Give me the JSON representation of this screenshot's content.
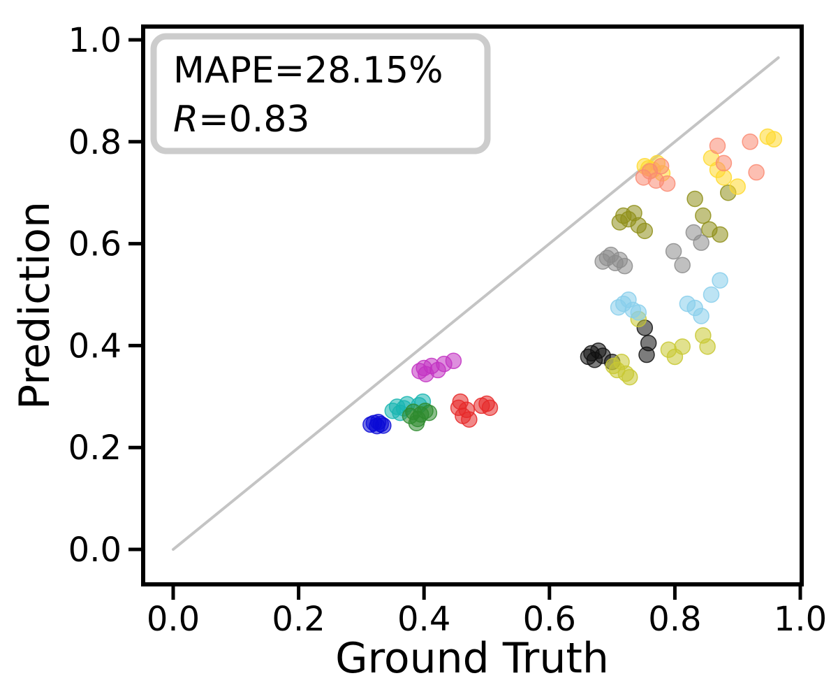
{
  "chart_data": {
    "type": "scatter",
    "title": "",
    "xlabel": "Ground Truth",
    "ylabel": "Prediction",
    "xlim": [
      -0.05,
      1.0
    ],
    "ylim": [
      -0.07,
      1.03
    ],
    "xticks": [
      "0.0",
      "0.2",
      "0.4",
      "0.6",
      "0.8",
      "1.0"
    ],
    "yticks": [
      "0.0",
      "0.2",
      "0.4",
      "0.6",
      "0.8",
      "1.0"
    ],
    "grid": false,
    "legend": "none",
    "annotation": {
      "mape": "MAPE=28.15%",
      "r_symbol": "R",
      "r_rest": "=0.83"
    },
    "identity_line": {
      "color": "#c4c4c4",
      "from": [
        0.0,
        0.0
      ],
      "to": [
        0.965,
        0.965
      ]
    },
    "marker": {
      "radius": 11,
      "alpha": 0.55
    },
    "series": [
      {
        "name": "blue",
        "color": "#0a0ad6",
        "points": [
          [
            0.315,
            0.245
          ],
          [
            0.32,
            0.248
          ],
          [
            0.325,
            0.242
          ],
          [
            0.331,
            0.246
          ],
          [
            0.335,
            0.243
          ],
          [
            0.327,
            0.25
          ]
        ]
      },
      {
        "name": "teal",
        "color": "#18b5b0",
        "points": [
          [
            0.35,
            0.272
          ],
          [
            0.357,
            0.28
          ],
          [
            0.362,
            0.268
          ],
          [
            0.368,
            0.277
          ],
          [
            0.373,
            0.285
          ],
          [
            0.398,
            0.29
          ],
          [
            0.392,
            0.283
          ]
        ]
      },
      {
        "name": "green",
        "color": "#2e8b2e",
        "points": [
          [
            0.378,
            0.262
          ],
          [
            0.383,
            0.27
          ],
          [
            0.39,
            0.256
          ],
          [
            0.395,
            0.265
          ],
          [
            0.402,
            0.272
          ],
          [
            0.408,
            0.268
          ],
          [
            0.388,
            0.248
          ]
        ]
      },
      {
        "name": "red",
        "color": "#e62828",
        "points": [
          [
            0.455,
            0.278
          ],
          [
            0.458,
            0.29
          ],
          [
            0.462,
            0.262
          ],
          [
            0.468,
            0.274
          ],
          [
            0.472,
            0.255
          ],
          [
            0.492,
            0.282
          ],
          [
            0.5,
            0.286
          ],
          [
            0.505,
            0.278
          ]
        ]
      },
      {
        "name": "magenta",
        "color": "#c233c2",
        "points": [
          [
            0.393,
            0.35
          ],
          [
            0.4,
            0.356
          ],
          [
            0.403,
            0.344
          ],
          [
            0.412,
            0.36
          ],
          [
            0.422,
            0.352
          ],
          [
            0.432,
            0.364
          ],
          [
            0.447,
            0.37
          ]
        ]
      },
      {
        "name": "black",
        "color": "#111111",
        "points": [
          [
            0.662,
            0.378
          ],
          [
            0.667,
            0.385
          ],
          [
            0.672,
            0.372
          ],
          [
            0.678,
            0.39
          ],
          [
            0.685,
            0.38
          ],
          [
            0.7,
            0.368
          ],
          [
            0.752,
            0.435
          ],
          [
            0.758,
            0.405
          ],
          [
            0.755,
            0.382
          ]
        ]
      },
      {
        "name": "khaki",
        "color": "#c8c832",
        "points": [
          [
            0.702,
            0.36
          ],
          [
            0.708,
            0.352
          ],
          [
            0.715,
            0.368
          ],
          [
            0.722,
            0.345
          ],
          [
            0.728,
            0.338
          ],
          [
            0.742,
            0.452
          ],
          [
            0.79,
            0.392
          ],
          [
            0.8,
            0.378
          ],
          [
            0.812,
            0.398
          ],
          [
            0.845,
            0.42
          ],
          [
            0.852,
            0.398
          ]
        ]
      },
      {
        "name": "olive",
        "color": "#8f8f1a",
        "points": [
          [
            0.712,
            0.642
          ],
          [
            0.718,
            0.655
          ],
          [
            0.726,
            0.648
          ],
          [
            0.735,
            0.66
          ],
          [
            0.742,
            0.636
          ],
          [
            0.752,
            0.625
          ],
          [
            0.832,
            0.688
          ],
          [
            0.845,
            0.655
          ],
          [
            0.855,
            0.628
          ],
          [
            0.872,
            0.618
          ],
          [
            0.885,
            0.7
          ]
        ]
      },
      {
        "name": "gray",
        "color": "#8c8c8c",
        "points": [
          [
            0.685,
            0.565
          ],
          [
            0.692,
            0.572
          ],
          [
            0.698,
            0.578
          ],
          [
            0.705,
            0.562
          ],
          [
            0.712,
            0.568
          ],
          [
            0.72,
            0.556
          ],
          [
            0.798,
            0.585
          ],
          [
            0.812,
            0.558
          ],
          [
            0.83,
            0.622
          ],
          [
            0.842,
            0.602
          ]
        ]
      },
      {
        "name": "skyblue",
        "color": "#87ceeb",
        "points": [
          [
            0.71,
            0.475
          ],
          [
            0.718,
            0.482
          ],
          [
            0.726,
            0.49
          ],
          [
            0.733,
            0.47
          ],
          [
            0.742,
            0.465
          ],
          [
            0.82,
            0.482
          ],
          [
            0.832,
            0.474
          ],
          [
            0.858,
            0.5
          ],
          [
            0.872,
            0.528
          ],
          [
            0.842,
            0.458
          ]
        ]
      },
      {
        "name": "yellow",
        "color": "#ffd92e",
        "points": [
          [
            0.752,
            0.752
          ],
          [
            0.758,
            0.748
          ],
          [
            0.765,
            0.745
          ],
          [
            0.772,
            0.758
          ],
          [
            0.78,
            0.738
          ],
          [
            0.858,
            0.768
          ],
          [
            0.868,
            0.745
          ],
          [
            0.878,
            0.73
          ],
          [
            0.9,
            0.712
          ],
          [
            0.948,
            0.81
          ],
          [
            0.958,
            0.805
          ]
        ]
      },
      {
        "name": "salmon",
        "color": "#fa8a72",
        "points": [
          [
            0.75,
            0.73
          ],
          [
            0.76,
            0.742
          ],
          [
            0.77,
            0.724
          ],
          [
            0.778,
            0.752
          ],
          [
            0.788,
            0.718
          ],
          [
            0.868,
            0.792
          ],
          [
            0.878,
            0.758
          ],
          [
            0.92,
            0.8
          ],
          [
            0.93,
            0.74
          ]
        ]
      }
    ]
  }
}
